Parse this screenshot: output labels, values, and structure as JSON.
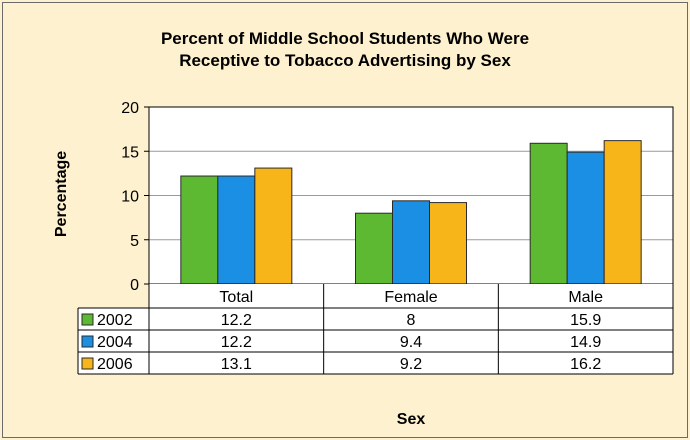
{
  "chart_data": {
    "type": "bar",
    "title_lines": [
      "Percent of Middle School Students Who Were",
      "Receptive to Tobacco Advertising by Sex"
    ],
    "xlabel": "Sex",
    "ylabel": "Percentage",
    "ylim": [
      0,
      20
    ],
    "yticks": [
      0,
      5,
      10,
      15,
      20
    ],
    "grid": true,
    "categories": [
      "Total",
      "Female",
      "Male"
    ],
    "series": [
      {
        "name": "2002",
        "color": "#5db832",
        "values": [
          12.2,
          8,
          15.9
        ]
      },
      {
        "name": "2004",
        "color": "#1a8fe3",
        "values": [
          12.2,
          9.4,
          14.9
        ]
      },
      {
        "name": "2006",
        "color": "#f7b51a",
        "values": [
          13.1,
          9.2,
          16.2
        ]
      }
    ],
    "table": [
      [
        "12.2",
        "8",
        "15.9"
      ],
      [
        "12.2",
        "9.4",
        "14.9"
      ],
      [
        "13.1",
        "9.2",
        "16.2"
      ]
    ]
  }
}
